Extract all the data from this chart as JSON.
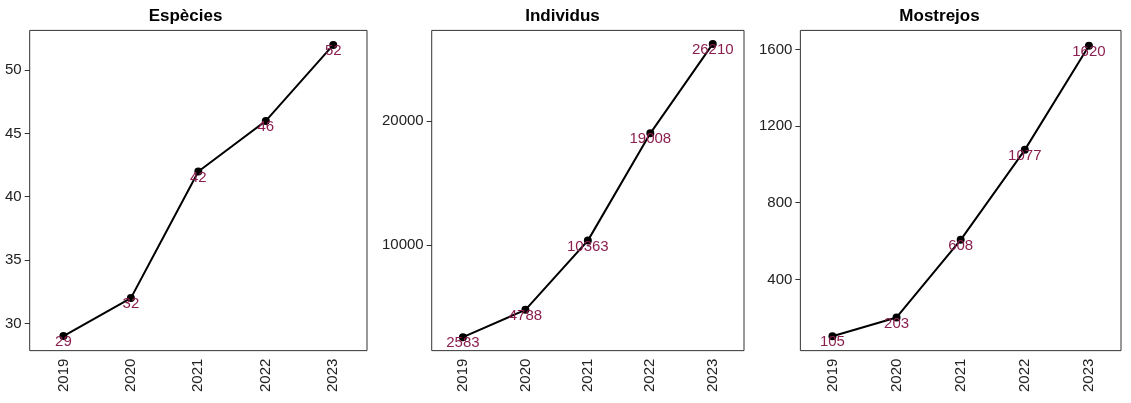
{
  "chart_data": [
    {
      "type": "line",
      "title": "Espècies",
      "categories": [
        "2019",
        "2020",
        "2021",
        "2022",
        "2023"
      ],
      "values": [
        29,
        32,
        42,
        46,
        52
      ],
      "color": "#000000",
      "ylim": [
        27.85,
        53.15
      ],
      "yticks": [
        30,
        35,
        40,
        45,
        50
      ],
      "grid": false,
      "marker": "circle",
      "data_labels": true
    },
    {
      "type": "line",
      "title": "Individus",
      "categories": [
        "2019",
        "2020",
        "2021",
        "2022",
        "2023"
      ],
      "values": [
        2583,
        4788,
        10363,
        19008,
        26210
      ],
      "color": "#000000",
      "ylim": [
        1500,
        27300
      ],
      "yticks": [
        10000,
        20000
      ],
      "grid": false,
      "marker": "circle",
      "data_labels": true
    },
    {
      "type": "line",
      "title": "Mostrejos",
      "categories": [
        "2019",
        "2020",
        "2021",
        "2022",
        "2023"
      ],
      "values": [
        105,
        203,
        608,
        1077,
        1620
      ],
      "color": "#000000",
      "ylim": [
        30,
        1700
      ],
      "yticks": [
        400,
        800,
        1200,
        1600
      ],
      "grid": false,
      "marker": "circle",
      "data_labels": true
    }
  ]
}
